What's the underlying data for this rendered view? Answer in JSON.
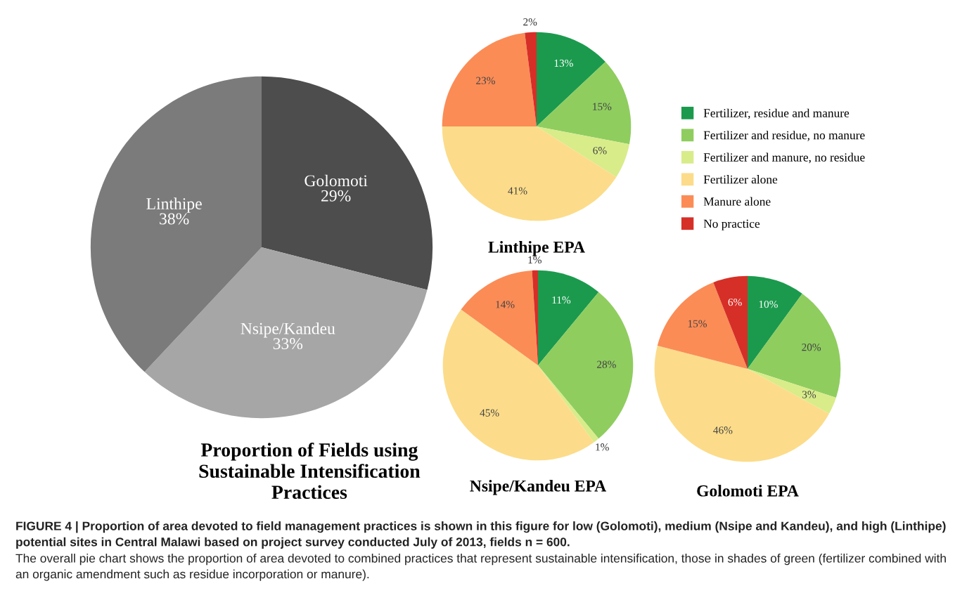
{
  "chart_data": [
    {
      "type": "pie",
      "title": "Proportion of Fields using\nSustainable Intensification\nPractices",
      "categories": [
        "Golomoti",
        "Nsipe/Kandeu",
        "Linthipe"
      ],
      "values": [
        29,
        33,
        38
      ],
      "value_labels": [
        "29%",
        "33%",
        "38%"
      ],
      "colors": [
        "#4d4d4d",
        "#a6a6a6",
        "#7b7b7b"
      ],
      "annotations": [
        "FIGURE 4 | Proportion of area devoted to field management practices is shown in this figure for low (Golomoti), medium (Nsipe and Kandeu), and high (Linthipe) potential sites in Central Malawi based on project survey conducted July of 2013, fields n = 600.",
        "The overall pie chart shows the proportion of area devoted to combined practices that represent sustainable intensification, those in shades of green (fertilizer combined with an organic amendment such as residue incorporation or manure)."
      ]
    },
    {
      "type": "pie",
      "title": "Linthipe EPA",
      "categories": [
        "Fertilizer, residue and manure",
        "Fertilizer and residue, no manure",
        "Fertilizer and manure, no residue",
        "Fertilizer alone",
        "Manure alone",
        "No practice"
      ],
      "values": [
        13,
        15,
        6,
        41,
        23,
        2
      ],
      "value_labels": [
        "13%",
        "15%",
        "6%",
        "41%",
        "23%",
        "2%"
      ],
      "colors": [
        "#1b9a4d",
        "#8fcd5f",
        "#d8ec8a",
        "#fcdc8a",
        "#fb8c56",
        "#d62f27"
      ],
      "legend": "right"
    },
    {
      "type": "pie",
      "title": "Nsipe/Kandeu EPA",
      "categories": [
        null,
        null,
        null,
        null,
        null,
        null
      ],
      "values": [
        11,
        28,
        1,
        45,
        14,
        1
      ],
      "value_labels": [
        "11%",
        "28%",
        "1%",
        "45%",
        "14%",
        "1%"
      ],
      "colors": [
        "#1b9a4d",
        "#8fcd5f",
        "#d8ec8a",
        "#fcdc8a",
        "#fb8c56",
        "#d62f27"
      ]
    },
    {
      "type": "pie",
      "title": "Golomoti EPA",
      "categories": [
        null,
        null,
        null,
        null,
        null,
        null
      ],
      "values": [
        10,
        20,
        3,
        46,
        15,
        6
      ],
      "value_labels": [
        "10%",
        "20%",
        "3%",
        "46%",
        "15%",
        "6%"
      ],
      "colors": [
        "#1b9a4d",
        "#8fcd5f",
        "#d8ec8a",
        "#fcdc8a",
        "#fb8c56",
        "#d62f27"
      ]
    }
  ]
}
